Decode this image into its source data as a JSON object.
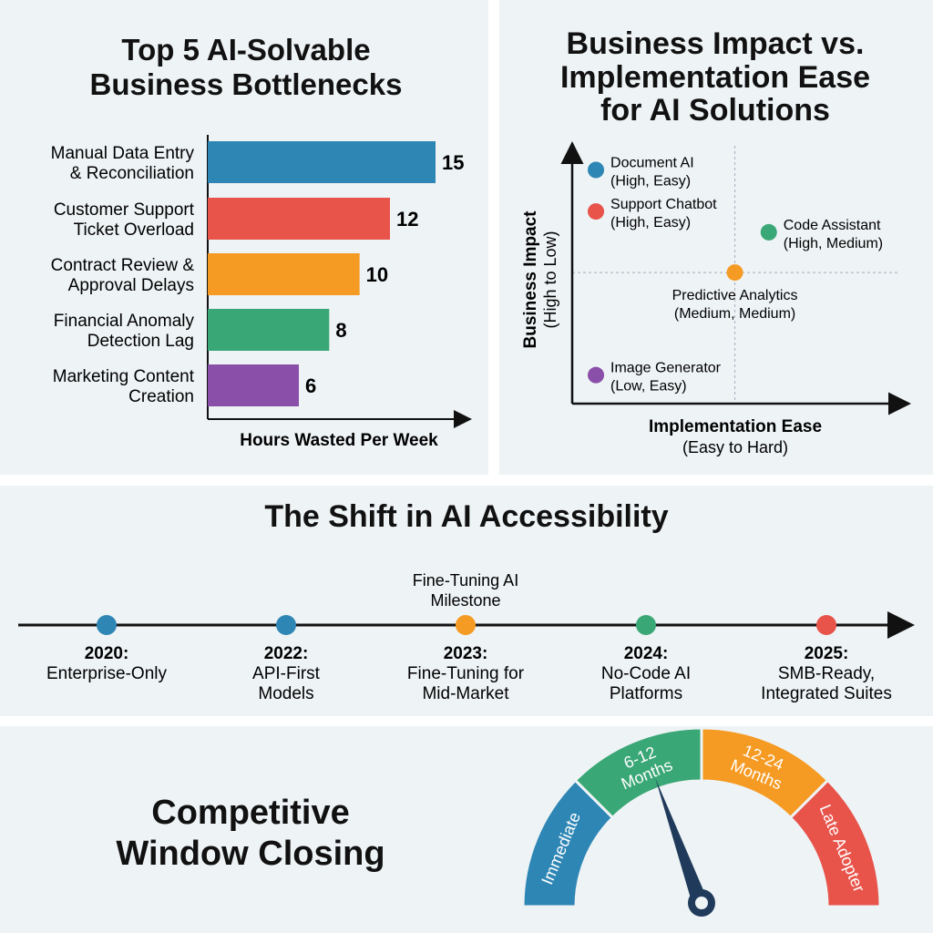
{
  "colors": {
    "blue": "#2e86b5",
    "red": "#e8534a",
    "orange": "#f59a23",
    "green": "#3aa776",
    "purple": "#8a4fa8",
    "navy": "#1f3a5a",
    "panel": "#eef3f5"
  },
  "bar_panel": {
    "title_line1": "Top 5 AI-Solvable",
    "title_line2": "Business Bottlenecks"
  },
  "scatter_panel": {
    "title_line1": "Business Impact vs.",
    "title_line2": "Implementation Ease",
    "title_line3": "for AI Solutions"
  },
  "timeline_panel": {
    "title": "The Shift in AI Accessibility"
  },
  "gauge_panel": {
    "title_line1": "Competitive",
    "title_line2": "Window Closing"
  },
  "chart_data": [
    {
      "type": "bar",
      "orientation": "horizontal",
      "title": "Top 5 AI-Solvable Business Bottlenecks",
      "xlabel": "Hours Wasted Per Week",
      "categories": [
        [
          "Manual Data Entry",
          "& Reconciliation"
        ],
        [
          "Customer Support",
          "Ticket Overload"
        ],
        [
          "Contract Review &",
          "Approval Delays"
        ],
        [
          "Financial Anomaly",
          "Detection Lag"
        ],
        [
          "Marketing Content",
          "Creation"
        ]
      ],
      "values": [
        15,
        12,
        10,
        8,
        6
      ],
      "value_labels": [
        "15",
        "12",
        "10",
        "8",
        "6"
      ],
      "bar_colors": [
        "#2e86b5",
        "#e8534a",
        "#f59a23",
        "#3aa776",
        "#8a4fa8"
      ],
      "xlim": [
        0,
        17
      ]
    },
    {
      "type": "scatter",
      "title": "Business Impact vs. Implementation Ease for AI Solutions",
      "xlabel": "Implementation Ease",
      "xlabel_sub": "(Easy to Hard)",
      "ylabel": "Business Impact",
      "ylabel_sub": "(High to Low)",
      "xlim": [
        0,
        10
      ],
      "ylim": [
        0,
        10
      ],
      "quadrant_dividers": {
        "x": 4.8,
        "y": 5.05
      },
      "points": [
        {
          "name": "Document AI",
          "detail": "(High, Easy)",
          "x": 0.7,
          "y": 9.0,
          "color": "#2e86b5",
          "label_pos": "right"
        },
        {
          "name": "Support Chatbot",
          "detail": "(High, Easy)",
          "x": 0.7,
          "y": 7.4,
          "color": "#e8534a",
          "label_pos": "right"
        },
        {
          "name": "Code Assistant",
          "detail": "(High, Medium)",
          "x": 5.8,
          "y": 6.6,
          "color": "#3aa776",
          "label_pos": "right"
        },
        {
          "name": "Predictive Analytics",
          "detail": "(Medium, Medium)",
          "x": 4.8,
          "y": 5.05,
          "color": "#f59a23",
          "label_pos": "below"
        },
        {
          "name": "Image Generator",
          "detail": "(Low, Easy)",
          "x": 0.7,
          "y": 1.1,
          "color": "#8a4fa8",
          "label_pos": "right"
        }
      ]
    },
    {
      "type": "timeline",
      "title": "The Shift in AI Accessibility",
      "annotation": {
        "line1": "Fine-Tuning AI",
        "line2": "Milestone",
        "event_index": 2
      },
      "events": [
        {
          "year": "2020:",
          "line1": "Enterprise-Only",
          "line2": "",
          "color": "#2e86b5"
        },
        {
          "year": "2022:",
          "line1": "API-First",
          "line2": "Models",
          "color": "#2e86b5"
        },
        {
          "year": "2023:",
          "line1": "Fine-Tuning for",
          "line2": "Mid-Market",
          "color": "#f59a23"
        },
        {
          "year": "2024:",
          "line1": "No-Code AI",
          "line2": "Platforms",
          "color": "#3aa776"
        },
        {
          "year": "2025:",
          "line1": "SMB-Ready,",
          "line2": "Integrated Suites",
          "color": "#e8534a"
        }
      ]
    },
    {
      "type": "gauge",
      "title": "Competitive Window Closing",
      "segments": [
        {
          "line1": "Immediate",
          "line2": "",
          "color": "#2e86b5"
        },
        {
          "line1": "6-12",
          "line2": "Months",
          "color": "#3aa776"
        },
        {
          "line1": "12-24",
          "line2": "Months",
          "color": "#f59a23"
        },
        {
          "line1": "Late Adopter",
          "line2": "",
          "color": "#e8534a"
        }
      ],
      "needle_fraction": 0.39
    }
  ]
}
